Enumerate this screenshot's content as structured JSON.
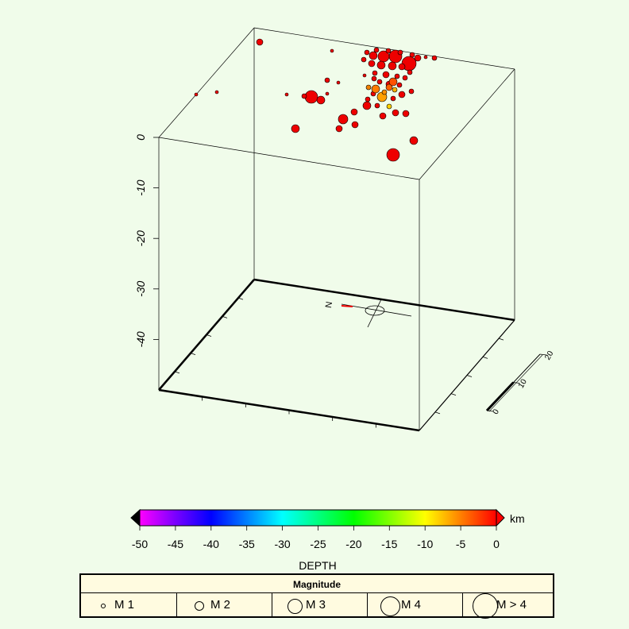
{
  "chart_data": {
    "type": "scatter",
    "z_axis_ticks": [
      "0",
      "-10",
      "-20",
      "-30",
      "-40"
    ],
    "z_range": [
      -50,
      0
    ],
    "scale_bar_ticks": [
      "0",
      "10",
      "20"
    ],
    "north_label": "N",
    "colorbar": {
      "title": "DEPTH",
      "unit": "km",
      "ticks": [
        "-50",
        "-45",
        "-40",
        "-35",
        "-30",
        "-25",
        "-20",
        "-15",
        "-10",
        "-5",
        "0"
      ],
      "range": [
        -50,
        0
      ],
      "colors": [
        "#ff00ff",
        "#7a00ff",
        "#0000ff",
        "#0080ff",
        "#00ffff",
        "#00ff80",
        "#00ff00",
        "#80ff00",
        "#ffff00",
        "#ff8000",
        "#ff0000"
      ]
    },
    "legend": {
      "title": "Magnitude",
      "items": [
        "M 1",
        "M 2",
        "M 3",
        "M 4",
        "M > 4"
      ]
    }
  }
}
